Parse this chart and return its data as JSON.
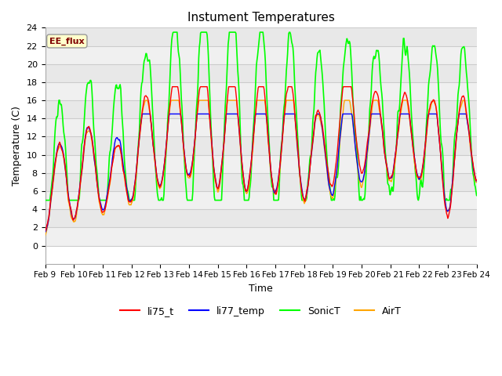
{
  "title": "Instument Temperatures",
  "xlabel": "Time",
  "ylabel": "Temperature (C)",
  "ylim": [
    -2,
    24
  ],
  "yticks": [
    0,
    2,
    4,
    6,
    8,
    10,
    12,
    14,
    16,
    18,
    20,
    22,
    24
  ],
  "x_tick_labels": [
    "Feb 9",
    "Feb 10",
    "Feb 11",
    "Feb 12",
    "Feb 13",
    "Feb 14",
    "Feb 15",
    "Feb 16",
    "Feb 17",
    "Feb 18",
    "Feb 19",
    "Feb 20",
    "Feb 21",
    "Feb 22",
    "Feb 23",
    "Feb 24"
  ],
  "annotation_text": "EE_flux",
  "annotation_color": "#800000",
  "annotation_bg": "#ffffcc",
  "annotation_edge": "#999999",
  "line_colors": {
    "li75_t": "#ff0000",
    "li77_temp": "#0000ff",
    "SonicT": "#00ff00",
    "AirT": "#ffa500"
  },
  "background_color": "#ffffff",
  "band_color_light": "#f0f0f0",
  "band_color_dark": "#e8e8e8",
  "grid_color": "#cccccc"
}
